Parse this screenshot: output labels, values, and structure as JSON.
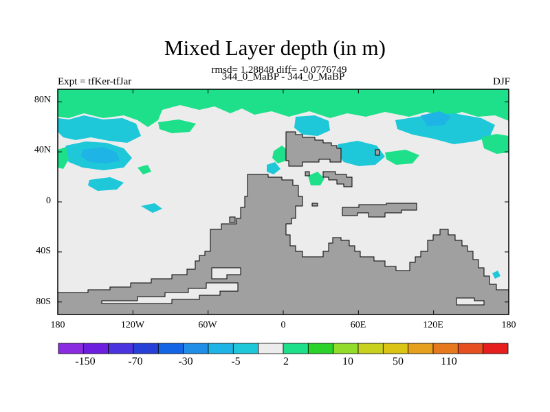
{
  "title": "Mixed Layer depth (in m)",
  "stats": "rmsd= 1.28848 diff= -0.0776749",
  "subtitle": "344_0_MaBP - 344_0_MaBP",
  "left_label": "Expt = tfKer-tfJar",
  "right_label": "DJF",
  "chart_data": {
    "type": "heatmap",
    "projection": "cylindrical-equidistant",
    "lon_range": [
      -180,
      180
    ],
    "lat_range": [
      -90,
      90
    ],
    "x_ticks": [
      "180",
      "120W",
      "60W",
      "0",
      "60E",
      "120E",
      "180"
    ],
    "y_ticks": [
      "80N",
      "40N",
      "0",
      "40S",
      "80S"
    ],
    "land_color": "#a0a0a0",
    "zero_band_color": "#ececec",
    "colorbar": {
      "colors": [
        "#8a2be2",
        "#6d1fe0",
        "#4b33e0",
        "#2740d8",
        "#1464e6",
        "#1e8ee6",
        "#1fb4e6",
        "#1ec8d8",
        "#ececec",
        "#1ee08a",
        "#2ad22a",
        "#94dc2a",
        "#c8d21e",
        "#dcc414",
        "#e6a01e",
        "#e6781e",
        "#e65020",
        "#e61e1e"
      ],
      "labels": [
        "-150",
        "-70",
        "-30",
        "-5",
        "2",
        "10",
        "50",
        "110"
      ]
    }
  }
}
